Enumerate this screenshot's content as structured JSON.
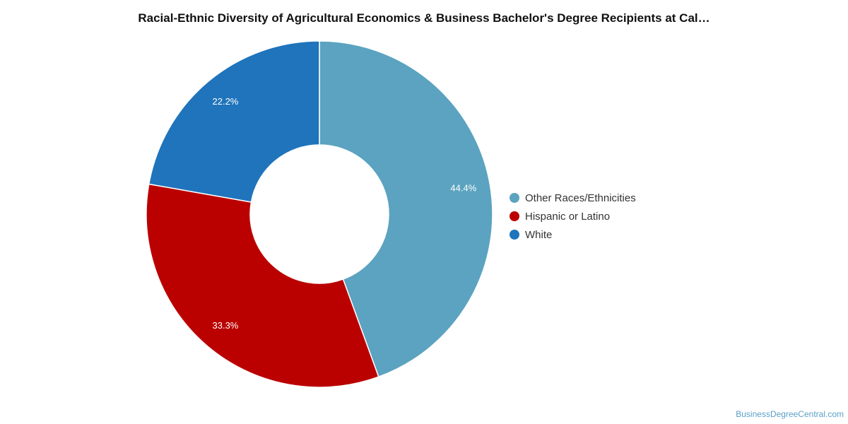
{
  "chart_data": {
    "type": "pie",
    "title": "Racial-Ethnic Diversity of Agricultural Economics & Business Bachelor's Degree Recipients at Cal…",
    "donut": true,
    "legend_position": "right",
    "slices": [
      {
        "label": "Other Races/Ethnicities",
        "value": 44.4,
        "value_label": "44.4%",
        "color": "#5ba3c0"
      },
      {
        "label": "Hispanic or Latino",
        "value": 33.3,
        "value_label": "33.3%",
        "color": "#bb0000"
      },
      {
        "label": "White",
        "value": 22.2,
        "value_label": "22.2%",
        "color": "#1f74bb"
      }
    ]
  },
  "watermark": "BusinessDegreeCentral.com"
}
